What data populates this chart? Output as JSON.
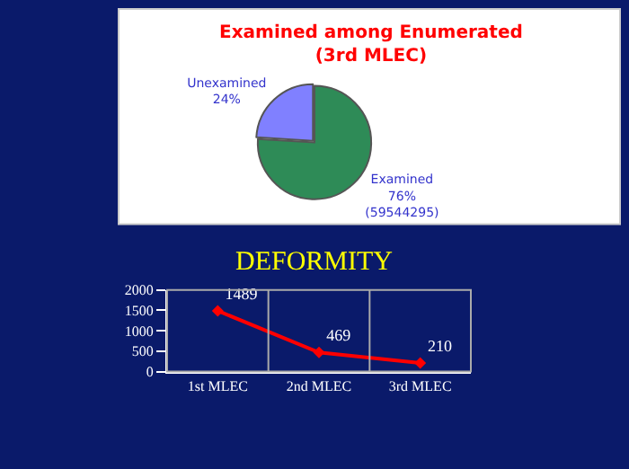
{
  "chart_data": [
    {
      "type": "pie",
      "title": "Examined among Enumerated\n(3rd MLEC)",
      "categories": [
        "Unexamined",
        "Examined"
      ],
      "values": [
        24,
        76
      ],
      "colors": [
        "#8080ff",
        "#2e8b57"
      ],
      "value_labels": [
        "24%",
        "76%\n(59544295)"
      ]
    },
    {
      "type": "line",
      "title": "DEFORMITY",
      "categories": [
        "1st MLEC",
        "2nd MLEC",
        "3rd MLEC"
      ],
      "series": [
        {
          "color": "#ff0000",
          "values": [
            1489,
            469,
            210
          ]
        }
      ],
      "ylim": [
        0,
        2000
      ],
      "yticks": [
        0,
        500,
        1000,
        1500,
        2000
      ],
      "data_labels": true,
      "marker": "diamond",
      "grid": "x"
    }
  ]
}
